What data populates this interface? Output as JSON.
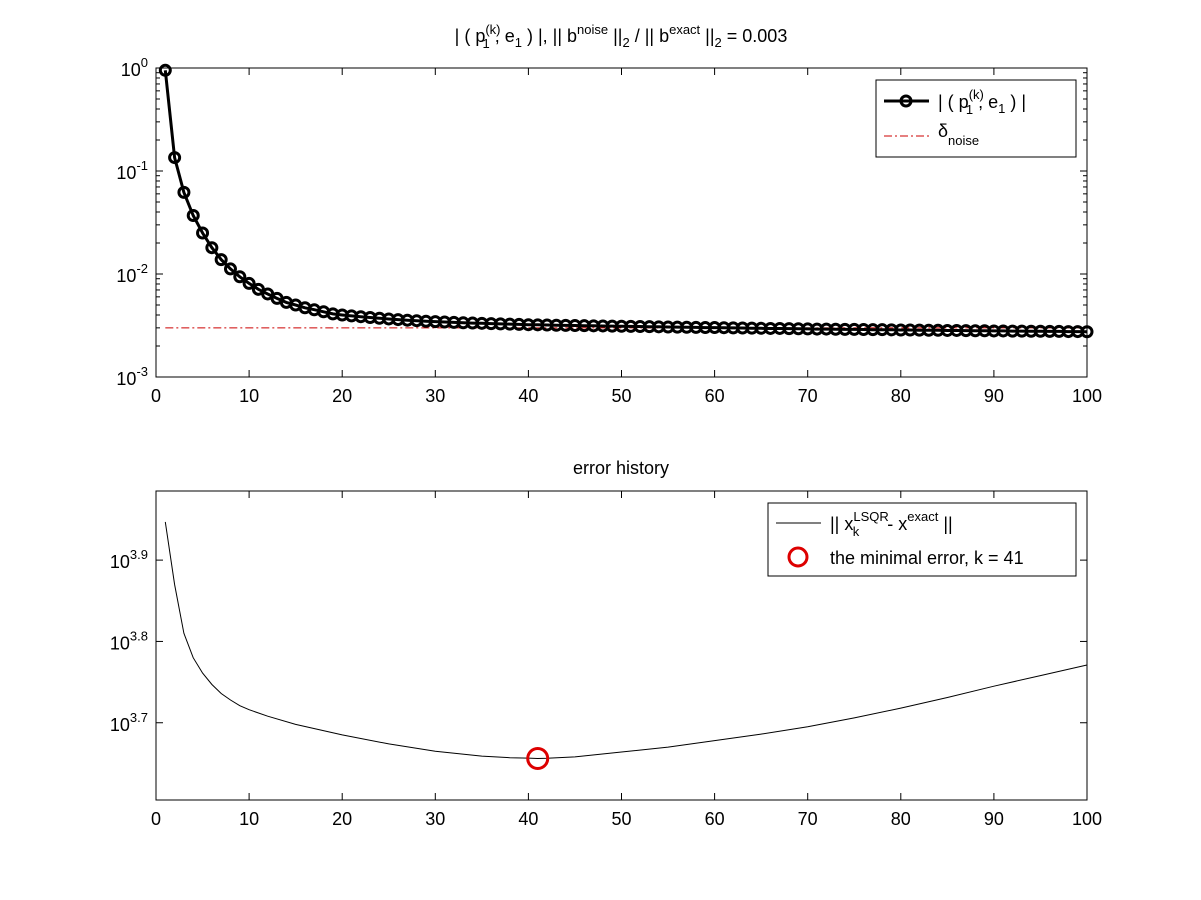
{
  "chart_data": [
    {
      "type": "line",
      "title_parts": {
        "prefix": "| ( p",
        "sup1": "(k)",
        "sub1": "1",
        "mid1": " , e",
        "sub2": "1",
        "mid2": " ) |,   || b",
        "sup2": "noise",
        "mid3": " ||",
        "sub3": "2",
        "mid4": " / || b",
        "sup3": "exact",
        "mid5": " ||",
        "sub4": "2",
        "suffix": " = 0.003"
      },
      "y_scale": "log",
      "xlim": [
        0,
        100
      ],
      "ylim": [
        0.001,
        1
      ],
      "x_ticks": [
        0,
        10,
        20,
        30,
        40,
        50,
        60,
        70,
        80,
        90,
        100
      ],
      "y_ticks": [
        {
          "base": "10",
          "exp": "0",
          "value": 1
        },
        {
          "base": "10",
          "exp": "-1",
          "value": 0.1
        },
        {
          "base": "10",
          "exp": "-2",
          "value": 0.01
        },
        {
          "base": "10",
          "exp": "-3",
          "value": 0.001
        }
      ],
      "series": [
        {
          "legend": {
            "prefix": "| ( p",
            "sup": "(k)",
            "sub": "1",
            "mid": " , e",
            "sub2": "1",
            "suffix": " ) |"
          },
          "style": "line-circle",
          "color": "#000000",
          "x": [
            1,
            2,
            3,
            4,
            5,
            6,
            7,
            8,
            9,
            10,
            11,
            12,
            13,
            14,
            15,
            16,
            17,
            18,
            19,
            20,
            21,
            22,
            23,
            24,
            25,
            26,
            27,
            28,
            29,
            30,
            31,
            32,
            33,
            34,
            35,
            36,
            37,
            38,
            39,
            40,
            41,
            42,
            43,
            44,
            45,
            46,
            47,
            48,
            49,
            50,
            51,
            52,
            53,
            54,
            55,
            56,
            57,
            58,
            59,
            60,
            61,
            62,
            63,
            64,
            65,
            66,
            67,
            68,
            69,
            70,
            71,
            72,
            73,
            74,
            75,
            76,
            77,
            78,
            79,
            80,
            81,
            82,
            83,
            84,
            85,
            86,
            87,
            88,
            89,
            90,
            91,
            92,
            93,
            94,
            95,
            96,
            97,
            98,
            99,
            100
          ],
          "y": [
            0.95,
            0.135,
            0.062,
            0.037,
            0.025,
            0.018,
            0.0138,
            0.0112,
            0.0094,
            0.0081,
            0.0071,
            0.0064,
            0.0058,
            0.0053,
            0.005,
            0.0047,
            0.0045,
            0.0043,
            0.0041,
            0.004,
            0.00392,
            0.00385,
            0.00378,
            0.00372,
            0.00366,
            0.00361,
            0.00356,
            0.00352,
            0.00348,
            0.00345,
            0.00342,
            0.00339,
            0.00336,
            0.00334,
            0.00332,
            0.0033,
            0.00328,
            0.00326,
            0.00324,
            0.00322,
            0.00321,
            0.0032,
            0.00318,
            0.00317,
            0.00316,
            0.00315,
            0.00314,
            0.00313,
            0.00312,
            0.00311,
            0.0031,
            0.00309,
            0.00308,
            0.00307,
            0.00306,
            0.00305,
            0.00304,
            0.00303,
            0.00302,
            0.00302,
            0.00301,
            0.003,
            0.00299,
            0.00298,
            0.00297,
            0.00296,
            0.00296,
            0.00295,
            0.00294,
            0.00293,
            0.00292,
            0.00292,
            0.00291,
            0.0029,
            0.0029,
            0.00289,
            0.00288,
            0.00288,
            0.00287,
            0.00286,
            0.00286,
            0.00285,
            0.00284,
            0.00284,
            0.00283,
            0.00283,
            0.00282,
            0.00281,
            0.00281,
            0.0028,
            0.0028,
            0.00279,
            0.00279,
            0.00278,
            0.00278,
            0.00277,
            0.00277,
            0.00276,
            0.00276,
            0.00275
          ]
        },
        {
          "legend": {
            "prefix": "δ",
            "sub": "noise"
          },
          "style": "dash-dot",
          "color": "#cc0000",
          "x": [
            1,
            100
          ],
          "y": [
            0.003,
            0.003
          ]
        }
      ],
      "legend_position": "top-right"
    },
    {
      "type": "line",
      "title": "error history",
      "y_scale": "log",
      "xlim": [
        0,
        100
      ],
      "ylim_log10": [
        3.605,
        3.985
      ],
      "x_ticks": [
        0,
        10,
        20,
        30,
        40,
        50,
        60,
        70,
        80,
        90,
        100
      ],
      "y_ticks": [
        {
          "base": "10",
          "exp": "3.9",
          "log10": 3.9
        },
        {
          "base": "10",
          "exp": "3.8",
          "log10": 3.8
        },
        {
          "base": "10",
          "exp": "3.7",
          "log10": 3.7
        }
      ],
      "series": [
        {
          "legend": {
            "prefix": "|| x",
            "sup": "LSQR",
            "sub": "k",
            "mid": " - x",
            "sup2": "exact",
            "suffix": " ||"
          },
          "style": "line",
          "color": "#000000",
          "x": [
            1,
            2,
            3,
            4,
            5,
            6,
            7,
            8,
            9,
            10,
            12,
            15,
            20,
            25,
            30,
            35,
            38,
            40,
            41,
            42,
            45,
            50,
            55,
            60,
            65,
            70,
            75,
            80,
            85,
            90,
            95,
            100
          ],
          "y_log10": [
            3.947,
            3.87,
            3.81,
            3.78,
            3.761,
            3.747,
            3.736,
            3.728,
            3.721,
            3.716,
            3.708,
            3.698,
            3.685,
            3.674,
            3.665,
            3.659,
            3.657,
            3.6565,
            3.656,
            3.6563,
            3.658,
            3.664,
            3.67,
            3.678,
            3.686,
            3.695,
            3.706,
            3.718,
            3.731,
            3.745,
            3.758,
            3.771
          ]
        },
        {
          "legend": {
            "text": "the minimal error, k = 41"
          },
          "style": "marker-circle",
          "color": "#dd0000",
          "x": [
            41
          ],
          "y_log10": [
            3.656
          ]
        }
      ],
      "legend_position": "top-right"
    }
  ]
}
